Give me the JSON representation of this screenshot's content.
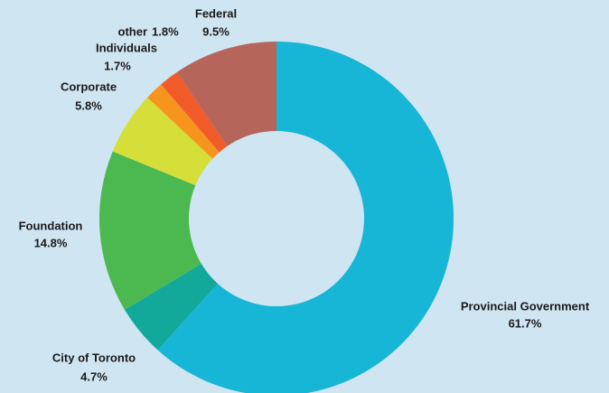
{
  "chart_data": {
    "type": "donut",
    "categories": [
      "Provincial Government",
      "City of Toronto",
      "Foundation",
      "Corporate",
      "Individuals",
      "other",
      "Federal"
    ],
    "values": [
      61.7,
      4.7,
      14.8,
      5.8,
      1.7,
      1.8,
      9.5
    ],
    "value_labels": [
      "61.7%",
      "4.7%",
      "14.8%",
      "5.8%",
      "1.7%",
      "1.8%",
      "9.5%"
    ],
    "colors": [
      "#17b5d6",
      "#12a99a",
      "#4cb850",
      "#d6de3a",
      "#f7941d",
      "#f15a29",
      "#b5655a"
    ]
  }
}
